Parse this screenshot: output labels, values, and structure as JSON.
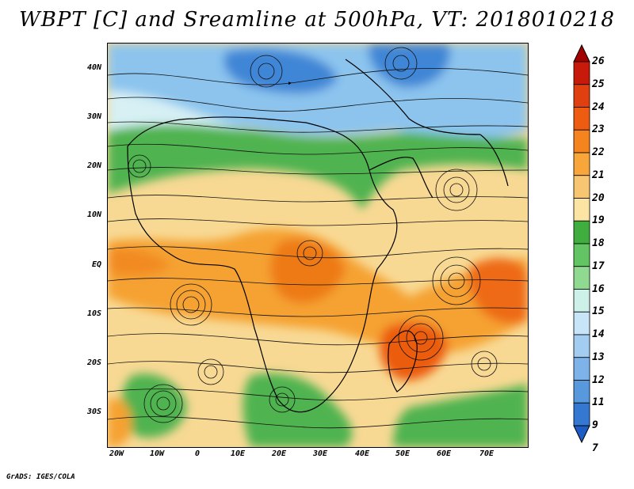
{
  "title": "WBPT [C] and Sreamline at 500hPa, VT: 2018010218",
  "lat_labels": [
    "40N",
    "30N",
    "20N",
    "10N",
    "EQ",
    "10S",
    "20S",
    "30S"
  ],
  "lon_labels": [
    "20W",
    "10W",
    "0",
    "10E",
    "20E",
    "30E",
    "40E",
    "50E",
    "60E",
    "70E"
  ],
  "colorbar": {
    "levels": [
      "26",
      "25",
      "24",
      "23",
      "22",
      "21",
      "20",
      "19",
      "18",
      "17",
      "16",
      "15",
      "14",
      "13",
      "12",
      "11",
      "9",
      "7"
    ],
    "colors": [
      "#a50000",
      "#c81a0a",
      "#e0400f",
      "#ee5c12",
      "#f5841f",
      "#f8a53a",
      "#f8c672",
      "#fbe4a4",
      "#3fae3f",
      "#62c462",
      "#90d990",
      "#cdf0e8",
      "#c7e4f8",
      "#a3cdf0",
      "#7db3e8",
      "#5899de",
      "#3478d2",
      "#1c5cc4"
    ]
  },
  "credit": "GrADS: IGES/COLA"
}
